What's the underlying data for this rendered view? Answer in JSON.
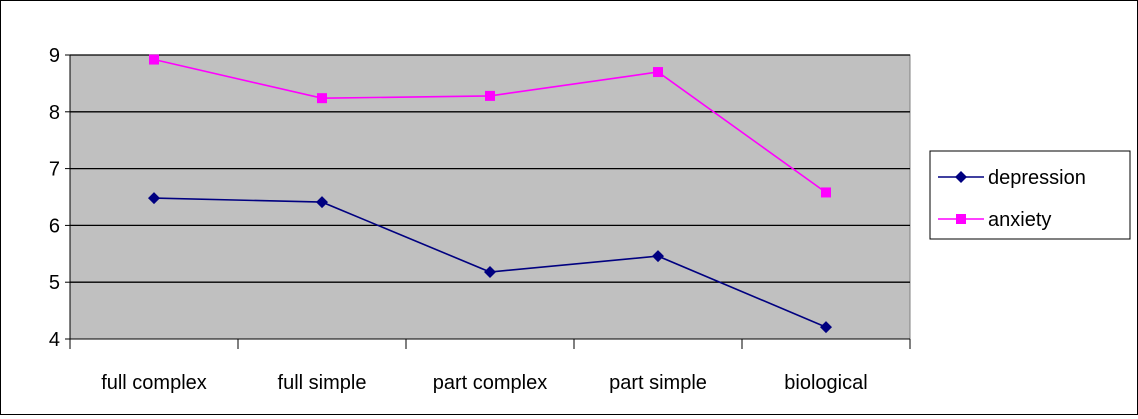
{
  "chart_data": {
    "type": "line",
    "title": "",
    "xlabel": "",
    "ylabel": "",
    "categories": [
      "full complex",
      "full simple",
      "part complex",
      "part simple",
      "biological"
    ],
    "series": [
      {
        "name": "depression",
        "values": [
          6.48,
          6.41,
          5.18,
          5.46,
          4.21
        ],
        "color": "#000080",
        "marker": "diamond"
      },
      {
        "name": "anxiety",
        "values": [
          8.92,
          8.24,
          8.28,
          8.7,
          6.58
        ],
        "color": "#FF00FF",
        "marker": "square"
      }
    ],
    "ylim": [
      4,
      9
    ],
    "yticks": [
      4,
      5,
      6,
      7,
      8,
      9
    ],
    "grid": "horizontal",
    "plot_background": "#C0C0C0",
    "legend_position": "right"
  }
}
